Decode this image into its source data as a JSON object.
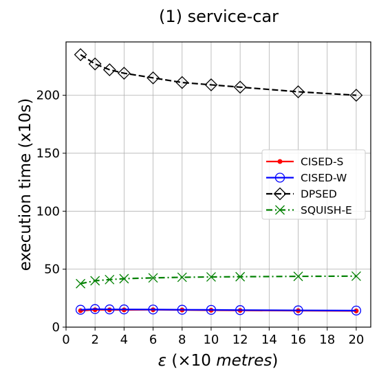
{
  "chart_data": {
    "type": "line",
    "title": "(1) service-car",
    "xlabel": {
      "symbol": "ε",
      "prefix": " (×10 ",
      "unit": "metres",
      "suffix": ")"
    },
    "ylabel": "execution time (x10s)",
    "xlim": [
      0,
      21
    ],
    "ylim": [
      0,
      246
    ],
    "xticks": [
      0,
      2,
      4,
      6,
      8,
      10,
      12,
      14,
      16,
      18,
      20
    ],
    "yticks": [
      0,
      50,
      100,
      150,
      200
    ],
    "grid": true,
    "legend_position": "center-right",
    "x": [
      1,
      2,
      3,
      4,
      6,
      8,
      10,
      12,
      16,
      20
    ],
    "series": [
      {
        "name": "CISED-S",
        "color": "#ff0000",
        "marker": "dot",
        "linestyle": "solid",
        "values": [
          14.2,
          15.0,
          14.9,
          14.9,
          15.0,
          14.8,
          14.6,
          14.4,
          14.2,
          14.0
        ]
      },
      {
        "name": "CISED-W",
        "color": "#0000ff",
        "marker": "circle",
        "linestyle": "solid",
        "values": [
          15.0,
          15.6,
          15.3,
          15.3,
          15.2,
          15.0,
          14.9,
          14.7,
          14.5,
          14.3
        ]
      },
      {
        "name": "DPSED",
        "color": "#000000",
        "marker": "diamond",
        "linestyle": "dashed",
        "values": [
          235,
          227,
          222,
          219,
          215,
          211,
          209,
          207,
          203,
          200
        ]
      },
      {
        "name": "SQUISH-E",
        "color": "#008000",
        "marker": "x",
        "linestyle": "dashdot",
        "values": [
          37.5,
          40.0,
          41.0,
          41.8,
          42.5,
          43.0,
          43.3,
          43.5,
          43.8,
          44.0
        ]
      }
    ]
  }
}
